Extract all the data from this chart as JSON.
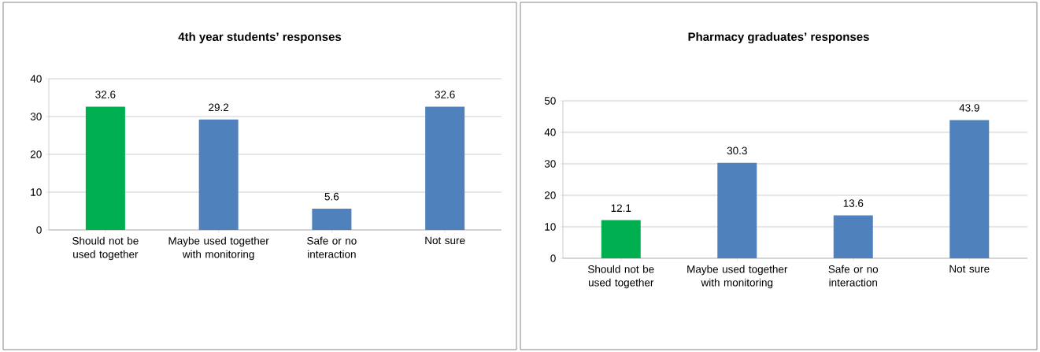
{
  "chart_data": [
    {
      "type": "bar",
      "title": "4th year students’ responses",
      "categories": [
        "Should not be used together",
        "Maybe used together with monitoring",
        "Safe or no interaction",
        "Not sure"
      ],
      "values": [
        32.6,
        29.2,
        5.6,
        32.6
      ],
      "colors": [
        "#00b050",
        "#4f81bd",
        "#4f81bd",
        "#4f81bd"
      ],
      "ylim": [
        0,
        40
      ],
      "yticks": [
        0,
        10,
        20,
        30,
        40
      ],
      "grid": "y",
      "data_labels": true
    },
    {
      "type": "bar",
      "title": "Pharmacy graduates’ responses",
      "categories": [
        "Should not be used together",
        "Maybe used together with monitoring",
        "Safe or no interaction",
        "Not sure"
      ],
      "values": [
        12.1,
        30.3,
        13.6,
        43.9
      ],
      "colors": [
        "#00b050",
        "#4f81bd",
        "#4f81bd",
        "#4f81bd"
      ],
      "ylim": [
        0,
        50
      ],
      "yticks": [
        0,
        10,
        20,
        30,
        40,
        50
      ],
      "grid": "y",
      "data_labels": true
    }
  ]
}
